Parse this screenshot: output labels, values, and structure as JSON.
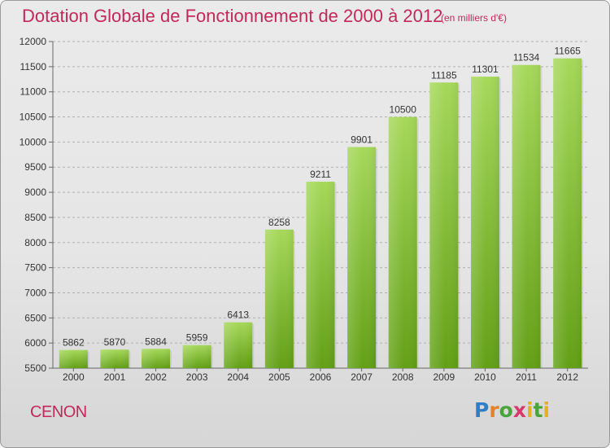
{
  "header": {
    "title": "Dotation Globale de Fonctionnement de 2000 à 2012",
    "unit": "(en milliers d'€)"
  },
  "footer": {
    "commune": "CENON",
    "logo_text": "Proxiti"
  },
  "colors": {
    "title": "#c0295a",
    "bar_light": "#a6d85a",
    "bar_dark": "#62a016"
  },
  "chart_data": {
    "type": "bar",
    "title": "Dotation Globale de Fonctionnement de 2000 à 2012",
    "subtitle": "(en milliers d'€)",
    "categories": [
      "2000",
      "2001",
      "2002",
      "2003",
      "2004",
      "2005",
      "2006",
      "2007",
      "2008",
      "2009",
      "2010",
      "2011",
      "2012"
    ],
    "values": [
      5862,
      5870,
      5884,
      5959,
      6413,
      8258,
      9211,
      9901,
      10500,
      11185,
      11301,
      11534,
      11665
    ],
    "ylim": [
      5500,
      12000
    ],
    "yticks": [
      5500,
      6000,
      6500,
      7000,
      7500,
      8000,
      8500,
      9000,
      9500,
      10000,
      10500,
      11000,
      11500,
      12000
    ],
    "grid": true,
    "xlabel": "",
    "ylabel": ""
  }
}
